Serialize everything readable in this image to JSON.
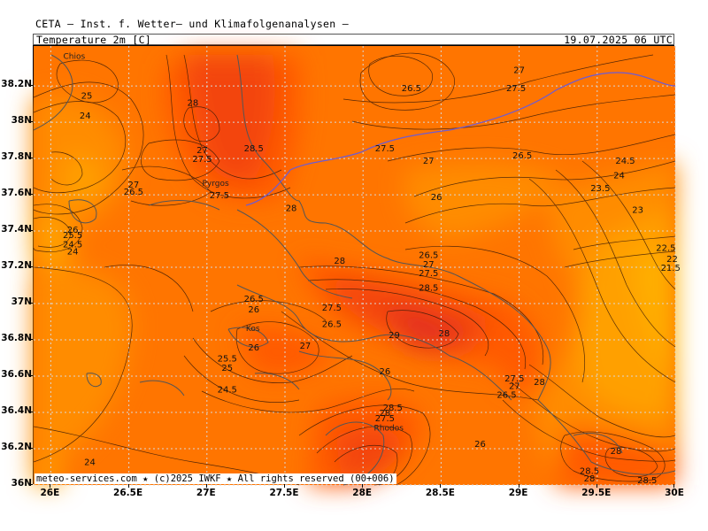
{
  "header": {
    "organization": "CETA – Inst. f. Wetter– und Klimafolgenanalysen –",
    "parameter": "Temperature_2m [C]",
    "datetime": "19.07.2025 06 UTC"
  },
  "footer": "meteo-services.com ★ (c)2025 IWKF ★ All rights reserved (00+006)",
  "axes": {
    "lat_labels": [
      "38.2N",
      "38N",
      "37.8N",
      "37.6N",
      "37.4N",
      "37.2N",
      "37N",
      "36.8N",
      "36.6N",
      "36.4N",
      "36.2N",
      "36N"
    ],
    "lon_labels": [
      "26E",
      "26.5E",
      "27E",
      "27.5E",
      "28E",
      "28.5E",
      "29E",
      "29.5E",
      "30E"
    ]
  },
  "places": [
    "Chios",
    "Pyrgos",
    "Kos",
    "Rhodos"
  ],
  "contour_labels": [
    {
      "t": "25",
      "lon": 26.23,
      "lat": 38.15
    },
    {
      "t": "24",
      "lon": 26.22,
      "lat": 38.04
    },
    {
      "t": "28",
      "lon": 26.91,
      "lat": 38.11
    },
    {
      "t": "27",
      "lon": 26.97,
      "lat": 37.85
    },
    {
      "t": "27.5",
      "lon": 26.97,
      "lat": 37.8
    },
    {
      "t": "28.5",
      "lon": 27.3,
      "lat": 37.86
    },
    {
      "t": "27",
      "lon": 26.53,
      "lat": 37.66
    },
    {
      "t": "26.5",
      "lon": 26.53,
      "lat": 37.62
    },
    {
      "t": "27.5",
      "lon": 27.08,
      "lat": 37.6
    },
    {
      "t": "28",
      "lon": 27.54,
      "lat": 37.53
    },
    {
      "t": "26",
      "lon": 26.14,
      "lat": 37.41
    },
    {
      "t": "25.5",
      "lon": 26.14,
      "lat": 37.38
    },
    {
      "t": "24.5",
      "lon": 26.14,
      "lat": 37.33
    },
    {
      "t": "24",
      "lon": 26.14,
      "lat": 37.29
    },
    {
      "t": "26.5",
      "lon": 28.31,
      "lat": 38.19
    },
    {
      "t": "27",
      "lon": 29.0,
      "lat": 38.29
    },
    {
      "t": "27.5",
      "lon": 28.98,
      "lat": 38.19
    },
    {
      "t": "27.5",
      "lon": 28.14,
      "lat": 37.86
    },
    {
      "t": "27",
      "lon": 28.42,
      "lat": 37.79
    },
    {
      "t": "26.5",
      "lon": 29.02,
      "lat": 37.82
    },
    {
      "t": "26",
      "lon": 28.47,
      "lat": 37.59
    },
    {
      "t": "24.5",
      "lon": 29.68,
      "lat": 37.79
    },
    {
      "t": "24",
      "lon": 29.64,
      "lat": 37.71
    },
    {
      "t": "23.5",
      "lon": 29.52,
      "lat": 37.64
    },
    {
      "t": "23",
      "lon": 29.76,
      "lat": 37.52
    },
    {
      "t": "22.5",
      "lon": 29.94,
      "lat": 37.31
    },
    {
      "t": "22",
      "lon": 29.98,
      "lat": 37.25
    },
    {
      "t": "21.5",
      "lon": 29.97,
      "lat": 37.2
    },
    {
      "t": "26.5",
      "lon": 28.42,
      "lat": 37.27
    },
    {
      "t": "27",
      "lon": 28.42,
      "lat": 37.22
    },
    {
      "t": "27.5",
      "lon": 28.42,
      "lat": 37.17
    },
    {
      "t": "28",
      "lon": 27.85,
      "lat": 37.24
    },
    {
      "t": "28.5",
      "lon": 28.42,
      "lat": 37.09
    },
    {
      "t": "26.5",
      "lon": 27.3,
      "lat": 37.03
    },
    {
      "t": "26",
      "lon": 27.3,
      "lat": 36.97
    },
    {
      "t": "27.5",
      "lon": 27.8,
      "lat": 36.98
    },
    {
      "t": "26.5",
      "lon": 27.8,
      "lat": 36.89
    },
    {
      "t": "29",
      "lon": 28.2,
      "lat": 36.83
    },
    {
      "t": "28",
      "lon": 28.52,
      "lat": 36.84
    },
    {
      "t": "27",
      "lon": 27.63,
      "lat": 36.77
    },
    {
      "t": "26",
      "lon": 27.3,
      "lat": 36.76
    },
    {
      "t": "25.5",
      "lon": 27.13,
      "lat": 36.7
    },
    {
      "t": "25",
      "lon": 27.13,
      "lat": 36.65
    },
    {
      "t": "24.5",
      "lon": 27.13,
      "lat": 36.53
    },
    {
      "t": "26",
      "lon": 28.14,
      "lat": 36.63
    },
    {
      "t": "27.5",
      "lon": 28.97,
      "lat": 36.59
    },
    {
      "t": "27",
      "lon": 28.97,
      "lat": 36.55
    },
    {
      "t": "28",
      "lon": 29.13,
      "lat": 36.57
    },
    {
      "t": "26.5",
      "lon": 28.92,
      "lat": 36.5
    },
    {
      "t": "28.5",
      "lon": 28.19,
      "lat": 36.43
    },
    {
      "t": "28",
      "lon": 28.14,
      "lat": 36.4
    },
    {
      "t": "27.5",
      "lon": 28.14,
      "lat": 36.37
    },
    {
      "t": "26",
      "lon": 28.75,
      "lat": 36.23
    },
    {
      "t": "24",
      "lon": 26.25,
      "lat": 36.13
    },
    {
      "t": "28",
      "lon": 29.62,
      "lat": 36.19
    },
    {
      "t": "28.5",
      "lon": 29.45,
      "lat": 36.08
    },
    {
      "t": "28",
      "lon": 29.45,
      "lat": 36.04
    },
    {
      "t": "28.5",
      "lon": 29.82,
      "lat": 36.03
    }
  ],
  "colors": {
    "c22": "#ffb000",
    "c24": "#ffa000",
    "c25": "#ff8c00",
    "c26": "#ff7500",
    "c27": "#ff5a00",
    "c28": "#f34410",
    "c29": "#e4321a",
    "land": "#555555",
    "border": "#6b5bd6",
    "grid": "#d8d8d8"
  },
  "legend": "none"
}
